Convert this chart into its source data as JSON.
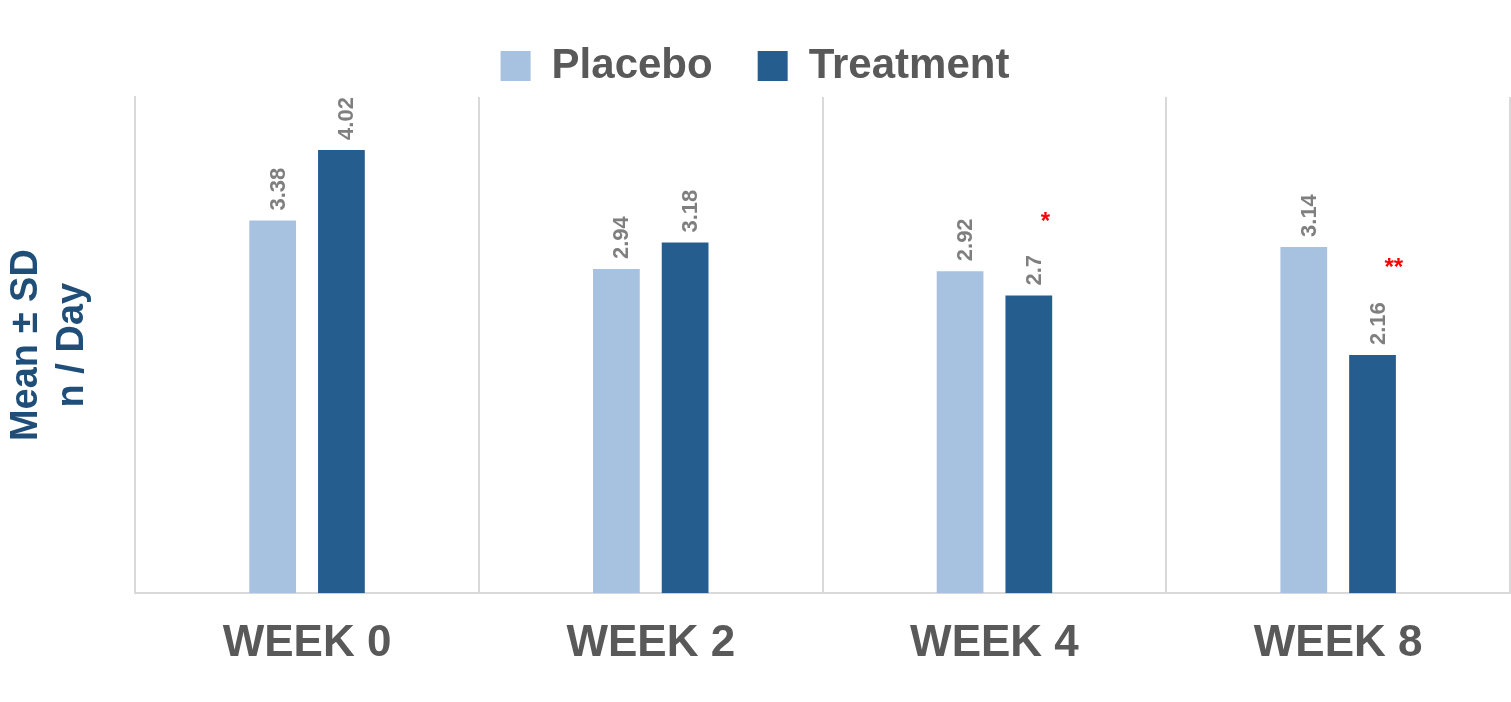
{
  "chart_data": {
    "type": "bar",
    "ylabel": "Mean ± SD\nn / Day",
    "categories": [
      "WEEK 0",
      "WEEK 2",
      "WEEK 4",
      "WEEK 8"
    ],
    "series": [
      {
        "name": "Placebo",
        "color": "#a7c1e0",
        "values": [
          3.38,
          2.94,
          2.92,
          3.14
        ]
      },
      {
        "name": "Treatment",
        "color": "#265d8f",
        "values": [
          4.02,
          3.18,
          2.7,
          2.16
        ]
      }
    ],
    "ylim": [
      0,
      4.5
    ],
    "tick_labels": "x",
    "grid": "x",
    "legend": "top",
    "data_labels": true,
    "annotations": [
      "*",
      "**"
    ]
  }
}
